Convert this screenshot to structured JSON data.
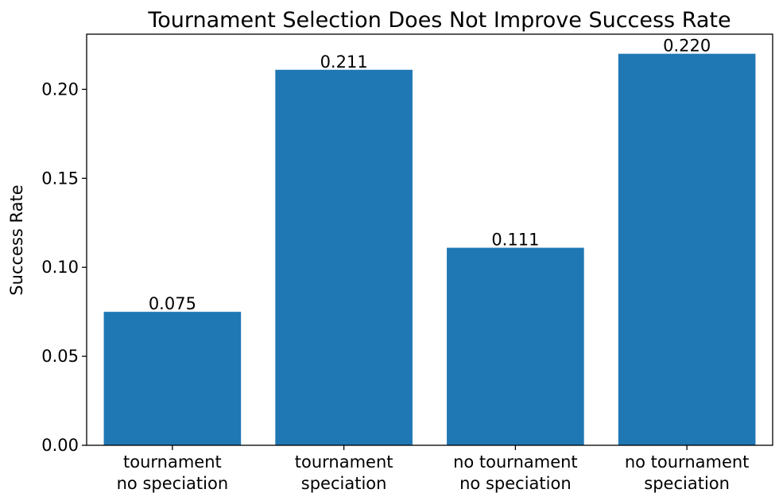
{
  "chart_data": {
    "type": "bar",
    "title": "Tournament Selection Does Not Improve Success Rate",
    "xlabel": "",
    "ylabel": "Success Rate",
    "categories": [
      [
        "tournament",
        "no speciation"
      ],
      [
        "tournament",
        "speciation"
      ],
      [
        "no tournament",
        "no speciation"
      ],
      [
        "no tournament",
        "speciation"
      ]
    ],
    "values": [
      0.075,
      0.211,
      0.111,
      0.22
    ],
    "data_labels": [
      "0.075",
      "0.211",
      "0.111",
      "0.220"
    ],
    "ylim": [
      0,
      0.231
    ],
    "yticks": [
      0.0,
      0.05,
      0.1,
      0.15,
      0.2
    ],
    "ytick_labels": [
      "0.00",
      "0.05",
      "0.10",
      "0.15",
      "0.20"
    ],
    "bar_color": "#1f77b4",
    "grid": false,
    "legend": "none"
  }
}
